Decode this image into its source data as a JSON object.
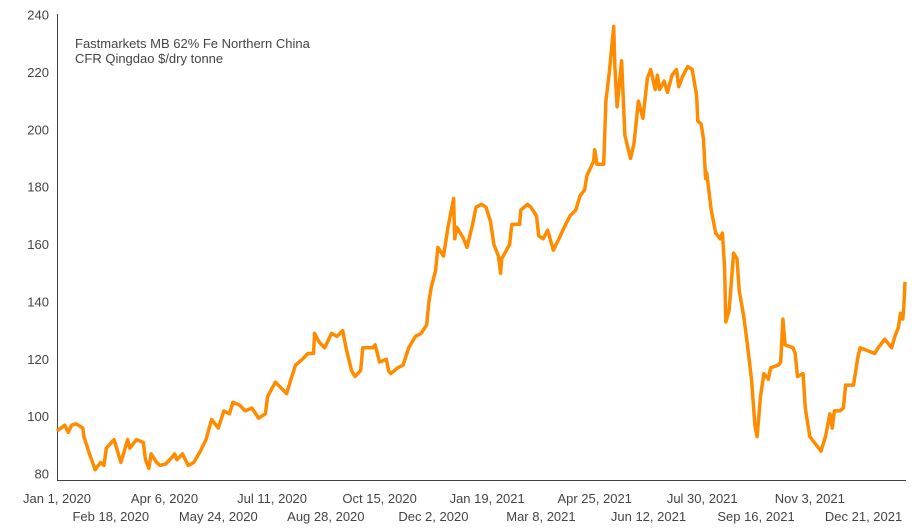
{
  "chart_data": {
    "type": "line",
    "title": "",
    "annotation": [
      "Fastmarkets MB 62% Fe Northern China",
      "CFR Qingdao $/dry tonne"
    ],
    "xlabel": "",
    "ylabel": "",
    "xlim": [
      "2020-01-01",
      "2022-01-27"
    ],
    "ylim": [
      80,
      240
    ],
    "y_ticks": [
      80,
      100,
      120,
      140,
      160,
      180,
      200,
      220,
      240
    ],
    "x_ticks": [
      {
        "date": "2020-01-01",
        "label": "Jan 1, 2020",
        "row": 1
      },
      {
        "date": "2020-02-18",
        "label": "Feb 18, 2020",
        "row": 2
      },
      {
        "date": "2020-04-06",
        "label": "Apr 6, 2020",
        "row": 1
      },
      {
        "date": "2020-05-24",
        "label": "May 24, 2020",
        "row": 2
      },
      {
        "date": "2020-07-11",
        "label": "Jul 11, 2020",
        "row": 1
      },
      {
        "date": "2020-08-28",
        "label": "Aug 28, 2020",
        "row": 2
      },
      {
        "date": "2020-10-15",
        "label": "Oct 15, 2020",
        "row": 1
      },
      {
        "date": "2020-12-02",
        "label": "Dec 2, 2020",
        "row": 2
      },
      {
        "date": "2021-01-19",
        "label": "Jan 19, 2021",
        "row": 1
      },
      {
        "date": "2021-03-08",
        "label": "Mar 8, 2021",
        "row": 2
      },
      {
        "date": "2021-04-25",
        "label": "Apr 25, 2021",
        "row": 1
      },
      {
        "date": "2021-06-12",
        "label": "Jun 12, 2021",
        "row": 2
      },
      {
        "date": "2021-07-30",
        "label": "Jul 30, 2021",
        "row": 1
      },
      {
        "date": "2021-09-16",
        "label": "Sep 16, 2021",
        "row": 2
      },
      {
        "date": "2021-11-03",
        "label": "Nov 3, 2021",
        "row": 1
      },
      {
        "date": "2021-12-21",
        "label": "Dec 21, 2021",
        "row": 2
      }
    ],
    "grid": false,
    "legend": "none",
    "colors": {
      "line": "#FF8C00",
      "axis": "#444444",
      "text": "#444444"
    },
    "series": [
      {
        "points": [
          [
            "2020-01-01",
            95
          ],
          [
            "2020-01-08",
            97
          ],
          [
            "2020-01-11",
            94.5
          ],
          [
            "2020-01-14",
            97
          ],
          [
            "2020-01-18",
            97.5
          ],
          [
            "2020-01-24",
            96
          ],
          [
            "2020-01-25",
            93
          ],
          [
            "2020-01-30",
            87
          ],
          [
            "2020-02-04",
            81.5
          ],
          [
            "2020-02-09",
            84
          ],
          [
            "2020-02-12",
            83
          ],
          [
            "2020-02-14",
            89
          ],
          [
            "2020-02-21",
            92
          ],
          [
            "2020-02-24",
            88
          ],
          [
            "2020-02-27",
            84
          ],
          [
            "2020-03-04",
            92
          ],
          [
            "2020-03-06",
            89
          ],
          [
            "2020-03-12",
            92
          ],
          [
            "2020-03-18",
            91
          ],
          [
            "2020-03-20",
            85
          ],
          [
            "2020-03-23",
            82
          ],
          [
            "2020-03-25",
            87
          ],
          [
            "2020-03-30",
            84
          ],
          [
            "2020-04-02",
            83
          ],
          [
            "2020-04-07",
            83.5
          ],
          [
            "2020-04-13",
            86
          ],
          [
            "2020-04-15",
            87
          ],
          [
            "2020-04-17",
            85
          ],
          [
            "2020-04-22",
            87
          ],
          [
            "2020-04-27",
            83
          ],
          [
            "2020-05-02",
            84
          ],
          [
            "2020-05-08",
            88
          ],
          [
            "2020-05-13",
            92
          ],
          [
            "2020-05-18",
            99
          ],
          [
            "2020-05-24",
            96
          ],
          [
            "2020-05-29",
            102
          ],
          [
            "2020-06-03",
            101
          ],
          [
            "2020-06-06",
            105
          ],
          [
            "2020-06-12",
            104
          ],
          [
            "2020-06-17",
            102
          ],
          [
            "2020-06-23",
            103
          ],
          [
            "2020-06-29",
            99.5
          ],
          [
            "2020-07-05",
            101
          ],
          [
            "2020-07-07",
            107
          ],
          [
            "2020-07-14",
            112
          ],
          [
            "2020-07-19",
            110
          ],
          [
            "2020-07-24",
            108
          ],
          [
            "2020-07-27",
            112
          ],
          [
            "2020-08-01",
            118
          ],
          [
            "2020-08-07",
            120
          ],
          [
            "2020-08-12",
            122
          ],
          [
            "2020-08-17",
            122
          ],
          [
            "2020-08-18",
            129
          ],
          [
            "2020-08-22",
            126
          ],
          [
            "2020-08-27",
            124
          ],
          [
            "2020-09-02",
            129
          ],
          [
            "2020-09-07",
            128
          ],
          [
            "2020-09-12",
            130
          ],
          [
            "2020-09-15",
            124
          ],
          [
            "2020-09-20",
            116
          ],
          [
            "2020-09-23",
            114
          ],
          [
            "2020-09-28",
            116
          ],
          [
            "2020-09-30",
            124
          ],
          [
            "2020-10-09",
            124
          ],
          [
            "2020-10-11",
            125
          ],
          [
            "2020-10-15",
            119
          ],
          [
            "2020-10-21",
            120
          ],
          [
            "2020-10-23",
            116
          ],
          [
            "2020-10-25",
            115
          ],
          [
            "2020-10-31",
            117
          ],
          [
            "2020-11-05",
            118
          ],
          [
            "2020-11-10",
            124
          ],
          [
            "2020-11-16",
            128
          ],
          [
            "2020-11-21",
            129
          ],
          [
            "2020-11-26",
            132
          ],
          [
            "2020-11-28",
            140
          ],
          [
            "2020-11-30",
            145
          ],
          [
            "2020-12-04",
            151
          ],
          [
            "2020-12-06",
            159
          ],
          [
            "2020-12-11",
            156
          ],
          [
            "2020-12-15",
            166
          ],
          [
            "2020-12-20",
            176
          ],
          [
            "2020-12-21",
            162
          ],
          [
            "2020-12-23",
            166
          ],
          [
            "2020-12-29",
            162
          ],
          [
            "2021-01-01",
            159
          ],
          [
            "2021-01-06",
            167
          ],
          [
            "2021-01-09",
            173
          ],
          [
            "2021-01-14",
            174
          ],
          [
            "2021-01-18",
            173
          ],
          [
            "2021-01-22",
            168
          ],
          [
            "2021-01-25",
            160
          ],
          [
            "2021-01-29",
            156
          ],
          [
            "2021-01-31",
            150
          ],
          [
            "2021-02-01",
            155
          ],
          [
            "2021-02-08",
            160
          ],
          [
            "2021-02-10",
            167
          ],
          [
            "2021-02-17",
            167
          ],
          [
            "2021-02-18",
            172
          ],
          [
            "2021-02-24",
            174
          ],
          [
            "2021-02-27",
            173
          ],
          [
            "2021-03-04",
            170
          ],
          [
            "2021-03-06",
            163
          ],
          [
            "2021-03-10",
            162
          ],
          [
            "2021-03-14",
            165
          ],
          [
            "2021-03-19",
            158
          ],
          [
            "2021-03-24",
            162
          ],
          [
            "2021-03-30",
            167
          ],
          [
            "2021-04-03",
            170
          ],
          [
            "2021-04-08",
            172
          ],
          [
            "2021-04-12",
            177
          ],
          [
            "2021-04-16",
            179
          ],
          [
            "2021-04-18",
            184
          ],
          [
            "2021-04-24",
            189
          ],
          [
            "2021-04-25",
            193
          ],
          [
            "2021-04-27",
            188
          ],
          [
            "2021-05-03",
            188
          ],
          [
            "2021-05-05",
            210
          ],
          [
            "2021-05-08",
            220
          ],
          [
            "2021-05-12",
            236
          ],
          [
            "2021-05-13",
            222
          ],
          [
            "2021-05-15",
            208
          ],
          [
            "2021-05-19",
            224
          ],
          [
            "2021-05-22",
            198
          ],
          [
            "2021-05-27",
            190
          ],
          [
            "2021-05-30",
            195
          ],
          [
            "2021-06-03",
            210
          ],
          [
            "2021-06-07",
            204
          ],
          [
            "2021-06-11",
            218
          ],
          [
            "2021-06-14",
            221
          ],
          [
            "2021-06-18",
            214
          ],
          [
            "2021-06-20",
            219
          ],
          [
            "2021-06-22",
            214
          ],
          [
            "2021-06-26",
            217
          ],
          [
            "2021-06-29",
            213
          ],
          [
            "2021-07-03",
            219
          ],
          [
            "2021-07-07",
            221
          ],
          [
            "2021-07-09",
            215
          ],
          [
            "2021-07-13",
            219
          ],
          [
            "2021-07-17",
            222
          ],
          [
            "2021-07-21",
            221
          ],
          [
            "2021-07-25",
            212
          ],
          [
            "2021-07-26",
            203
          ],
          [
            "2021-07-29",
            202
          ],
          [
            "2021-07-31",
            197
          ],
          [
            "2021-08-02",
            183
          ],
          [
            "2021-08-03",
            185
          ],
          [
            "2021-08-07",
            172
          ],
          [
            "2021-08-11",
            164
          ],
          [
            "2021-08-15",
            162
          ],
          [
            "2021-08-17",
            164
          ],
          [
            "2021-08-19",
            152
          ],
          [
            "2021-08-20",
            133
          ],
          [
            "2021-08-23",
            137
          ],
          [
            "2021-08-27",
            157
          ],
          [
            "2021-08-30",
            155
          ],
          [
            "2021-09-01",
            144
          ],
          [
            "2021-09-05",
            135
          ],
          [
            "2021-09-08",
            126
          ],
          [
            "2021-09-12",
            113
          ],
          [
            "2021-09-15",
            97
          ],
          [
            "2021-09-17",
            93
          ],
          [
            "2021-09-20",
            107
          ],
          [
            "2021-09-23",
            115
          ],
          [
            "2021-09-27",
            113
          ],
          [
            "2021-09-29",
            117
          ],
          [
            "2021-10-06",
            118
          ],
          [
            "2021-10-08",
            119
          ],
          [
            "2021-10-10",
            134
          ],
          [
            "2021-10-12",
            125
          ],
          [
            "2021-10-19",
            124
          ],
          [
            "2021-10-21",
            122
          ],
          [
            "2021-10-23",
            114
          ],
          [
            "2021-10-28",
            115
          ],
          [
            "2021-10-30",
            103
          ],
          [
            "2021-11-03",
            93
          ],
          [
            "2021-11-07",
            91
          ],
          [
            "2021-11-13",
            88
          ],
          [
            "2021-11-17",
            93
          ],
          [
            "2021-11-21",
            101
          ],
          [
            "2021-11-23",
            96
          ],
          [
            "2021-11-25",
            102
          ],
          [
            "2021-11-30",
            102
          ],
          [
            "2021-12-03",
            103
          ],
          [
            "2021-12-05",
            111
          ],
          [
            "2021-12-12",
            111
          ],
          [
            "2021-12-16",
            121
          ],
          [
            "2021-12-18",
            124
          ],
          [
            "2021-12-31",
            122
          ],
          [
            "2022-01-03",
            124
          ],
          [
            "2022-01-09",
            127
          ],
          [
            "2022-01-15",
            124
          ],
          [
            "2022-01-18",
            128
          ],
          [
            "2022-01-21",
            131
          ],
          [
            "2022-01-23",
            136
          ],
          [
            "2022-01-25",
            134
          ],
          [
            "2022-01-26",
            139
          ],
          [
            "2022-01-27",
            147
          ]
        ]
      }
    ]
  }
}
